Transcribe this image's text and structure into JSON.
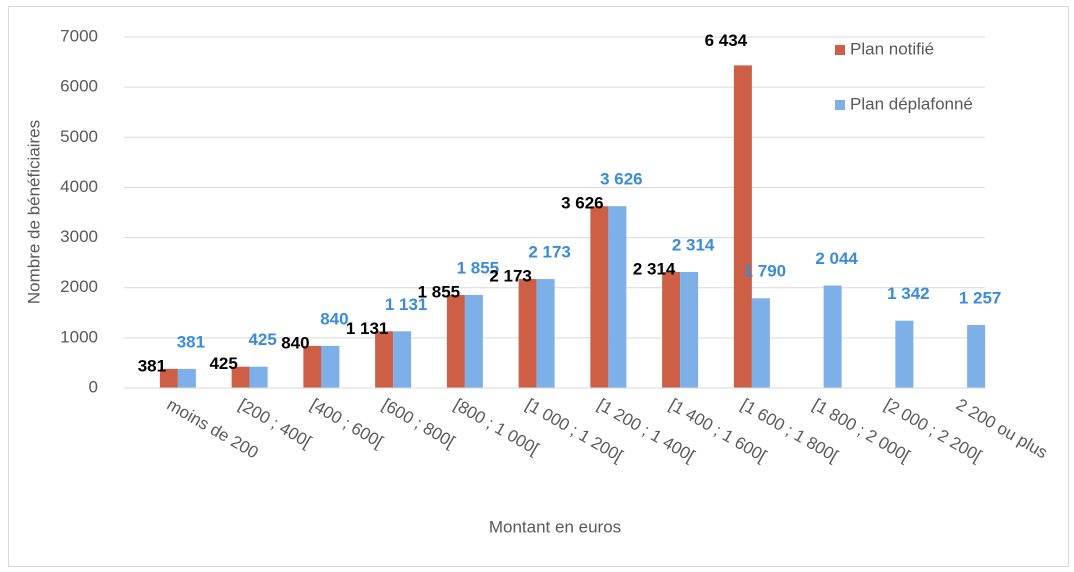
{
  "chart_data": {
    "type": "bar",
    "categories": [
      "moins de 200",
      "[200 ; 400[",
      "[400 ; 600[",
      "[600 ; 800[",
      "[800 ; 1 000[",
      "[1 000 ; 1 200[",
      "[1 200 ; 1 400[",
      "[1 400 ; 1 600[",
      "[1 600 ; 1 800[",
      "[1 800 ; 2 000[",
      "[2 000 ; 2 200[",
      "2 200 ou plus"
    ],
    "series": [
      {
        "name": "Plan notifié",
        "color": "#cd5f46",
        "label_color": "#000000",
        "values": [
          381,
          425,
          840,
          1131,
          1855,
          2173,
          3626,
          2314,
          6434,
          null,
          null,
          null
        ],
        "value_labels": [
          "381",
          "425",
          "840",
          "1 131",
          "1 855",
          "2 173",
          "3 626",
          "2 314",
          "6 434",
          null,
          null,
          null
        ]
      },
      {
        "name": "Plan déplafonné",
        "color": "#7db0e8",
        "label_color": "#3a8bd8",
        "values": [
          381,
          425,
          840,
          1131,
          1855,
          2173,
          3626,
          2314,
          1790,
          2044,
          1342,
          1257
        ],
        "value_labels": [
          "381",
          "425",
          "840",
          "1 131",
          "1 855",
          "2 173",
          "3 626",
          "2 314",
          "1 790",
          "2 044",
          "1 342",
          "1 257"
        ]
      }
    ],
    "xlabel": "Montant en euros",
    "ylabel": "Nombre de bénéficiaires",
    "ylim": [
      0,
      7000
    ],
    "yticks": [
      0,
      1000,
      2000,
      3000,
      4000,
      5000,
      6000,
      7000
    ],
    "grid": true,
    "legend": "top-right"
  }
}
